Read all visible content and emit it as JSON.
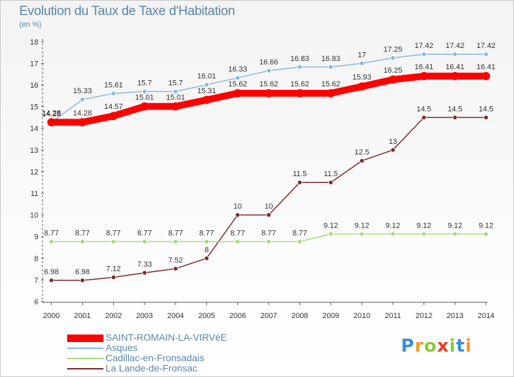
{
  "chart_data": {
    "type": "line",
    "title": "Evolution du Taux de Taxe d'Habitation",
    "subtitle": "(en %)",
    "xlabel": "",
    "ylabel": "",
    "x": [
      "2000",
      "2001",
      "2002",
      "2003",
      "2004",
      "2005",
      "2006",
      "2007",
      "2008",
      "2009",
      "2010",
      "2011",
      "2012",
      "2013",
      "2014"
    ],
    "ylim": [
      6,
      18
    ],
    "yticks": [
      6,
      7,
      8,
      9,
      10,
      11,
      12,
      13,
      14,
      15,
      16,
      17,
      18
    ],
    "grid": false,
    "legend_position": "bottom-left",
    "series": [
      {
        "name": "SAINT-ROMAIN-LA-VIRVéE",
        "color": "#ff0000",
        "labels": [
          "14.28",
          "14.28",
          "14.57",
          "15.01",
          "15.01",
          "15.31",
          "15.62",
          "15.62",
          "15.62",
          "15.62",
          "15.93",
          "16.25",
          "16.41",
          "16.41",
          "16.41"
        ],
        "values": [
          14.28,
          14.28,
          14.57,
          15.01,
          15.01,
          15.31,
          15.62,
          15.62,
          15.62,
          15.62,
          15.93,
          16.25,
          16.41,
          16.41,
          16.41
        ]
      },
      {
        "name": "Asques",
        "color": "#8ab8dc",
        "labels": [
          "14.28",
          "15.33",
          "15.61",
          "15.7",
          "15.7",
          "16.01",
          "16.33",
          "16.66",
          "16.83",
          "16.83",
          "17",
          "17.25",
          "17.42",
          "17.42",
          "17.42"
        ],
        "values": [
          14.28,
          15.33,
          15.61,
          15.7,
          15.7,
          16.01,
          16.33,
          16.66,
          16.83,
          16.83,
          17,
          17.25,
          17.42,
          17.42,
          17.42
        ]
      },
      {
        "name": "Cadillac-en-Fronsadais",
        "color": "#a6dc7c",
        "labels": [
          "8.77",
          "8.77",
          "8.77",
          "8.77",
          "8.77",
          "8.77",
          "8.77",
          "8.77",
          "8.77",
          "9.12",
          "9.12",
          "9.12",
          "9.12",
          "9.12",
          "9.12"
        ],
        "values": [
          8.77,
          8.77,
          8.77,
          8.77,
          8.77,
          8.77,
          8.77,
          8.77,
          8.77,
          9.12,
          9.12,
          9.12,
          9.12,
          9.12,
          9.12
        ]
      },
      {
        "name": "La Lande-de-Fronsac",
        "color": "#7a2a2a",
        "labels": [
          "6.98",
          "6.98",
          "7.12",
          "7.33",
          "7.52",
          "8",
          "10",
          "10",
          "11.5",
          "11.5",
          "12.5",
          "13",
          "14.5",
          "14.5",
          "14.5"
        ],
        "values": [
          6.98,
          6.98,
          7.12,
          7.33,
          7.52,
          8,
          10,
          10,
          11.5,
          11.5,
          12.5,
          13,
          14.5,
          14.5,
          14.5
        ]
      }
    ]
  },
  "brand": {
    "letters": [
      "P",
      "r",
      "o",
      "x",
      "i",
      "t",
      "i"
    ],
    "colors": [
      "#3a8fd0",
      "#f39a2c",
      "#8cc63e",
      "#e8402a",
      "#8cc63e",
      "#3a8fd0",
      "#f39a2c"
    ]
  },
  "colors": {
    "axis": "#555555",
    "tick_label": "#333333",
    "value_label": "#333333",
    "title": "#5a86a8"
  }
}
